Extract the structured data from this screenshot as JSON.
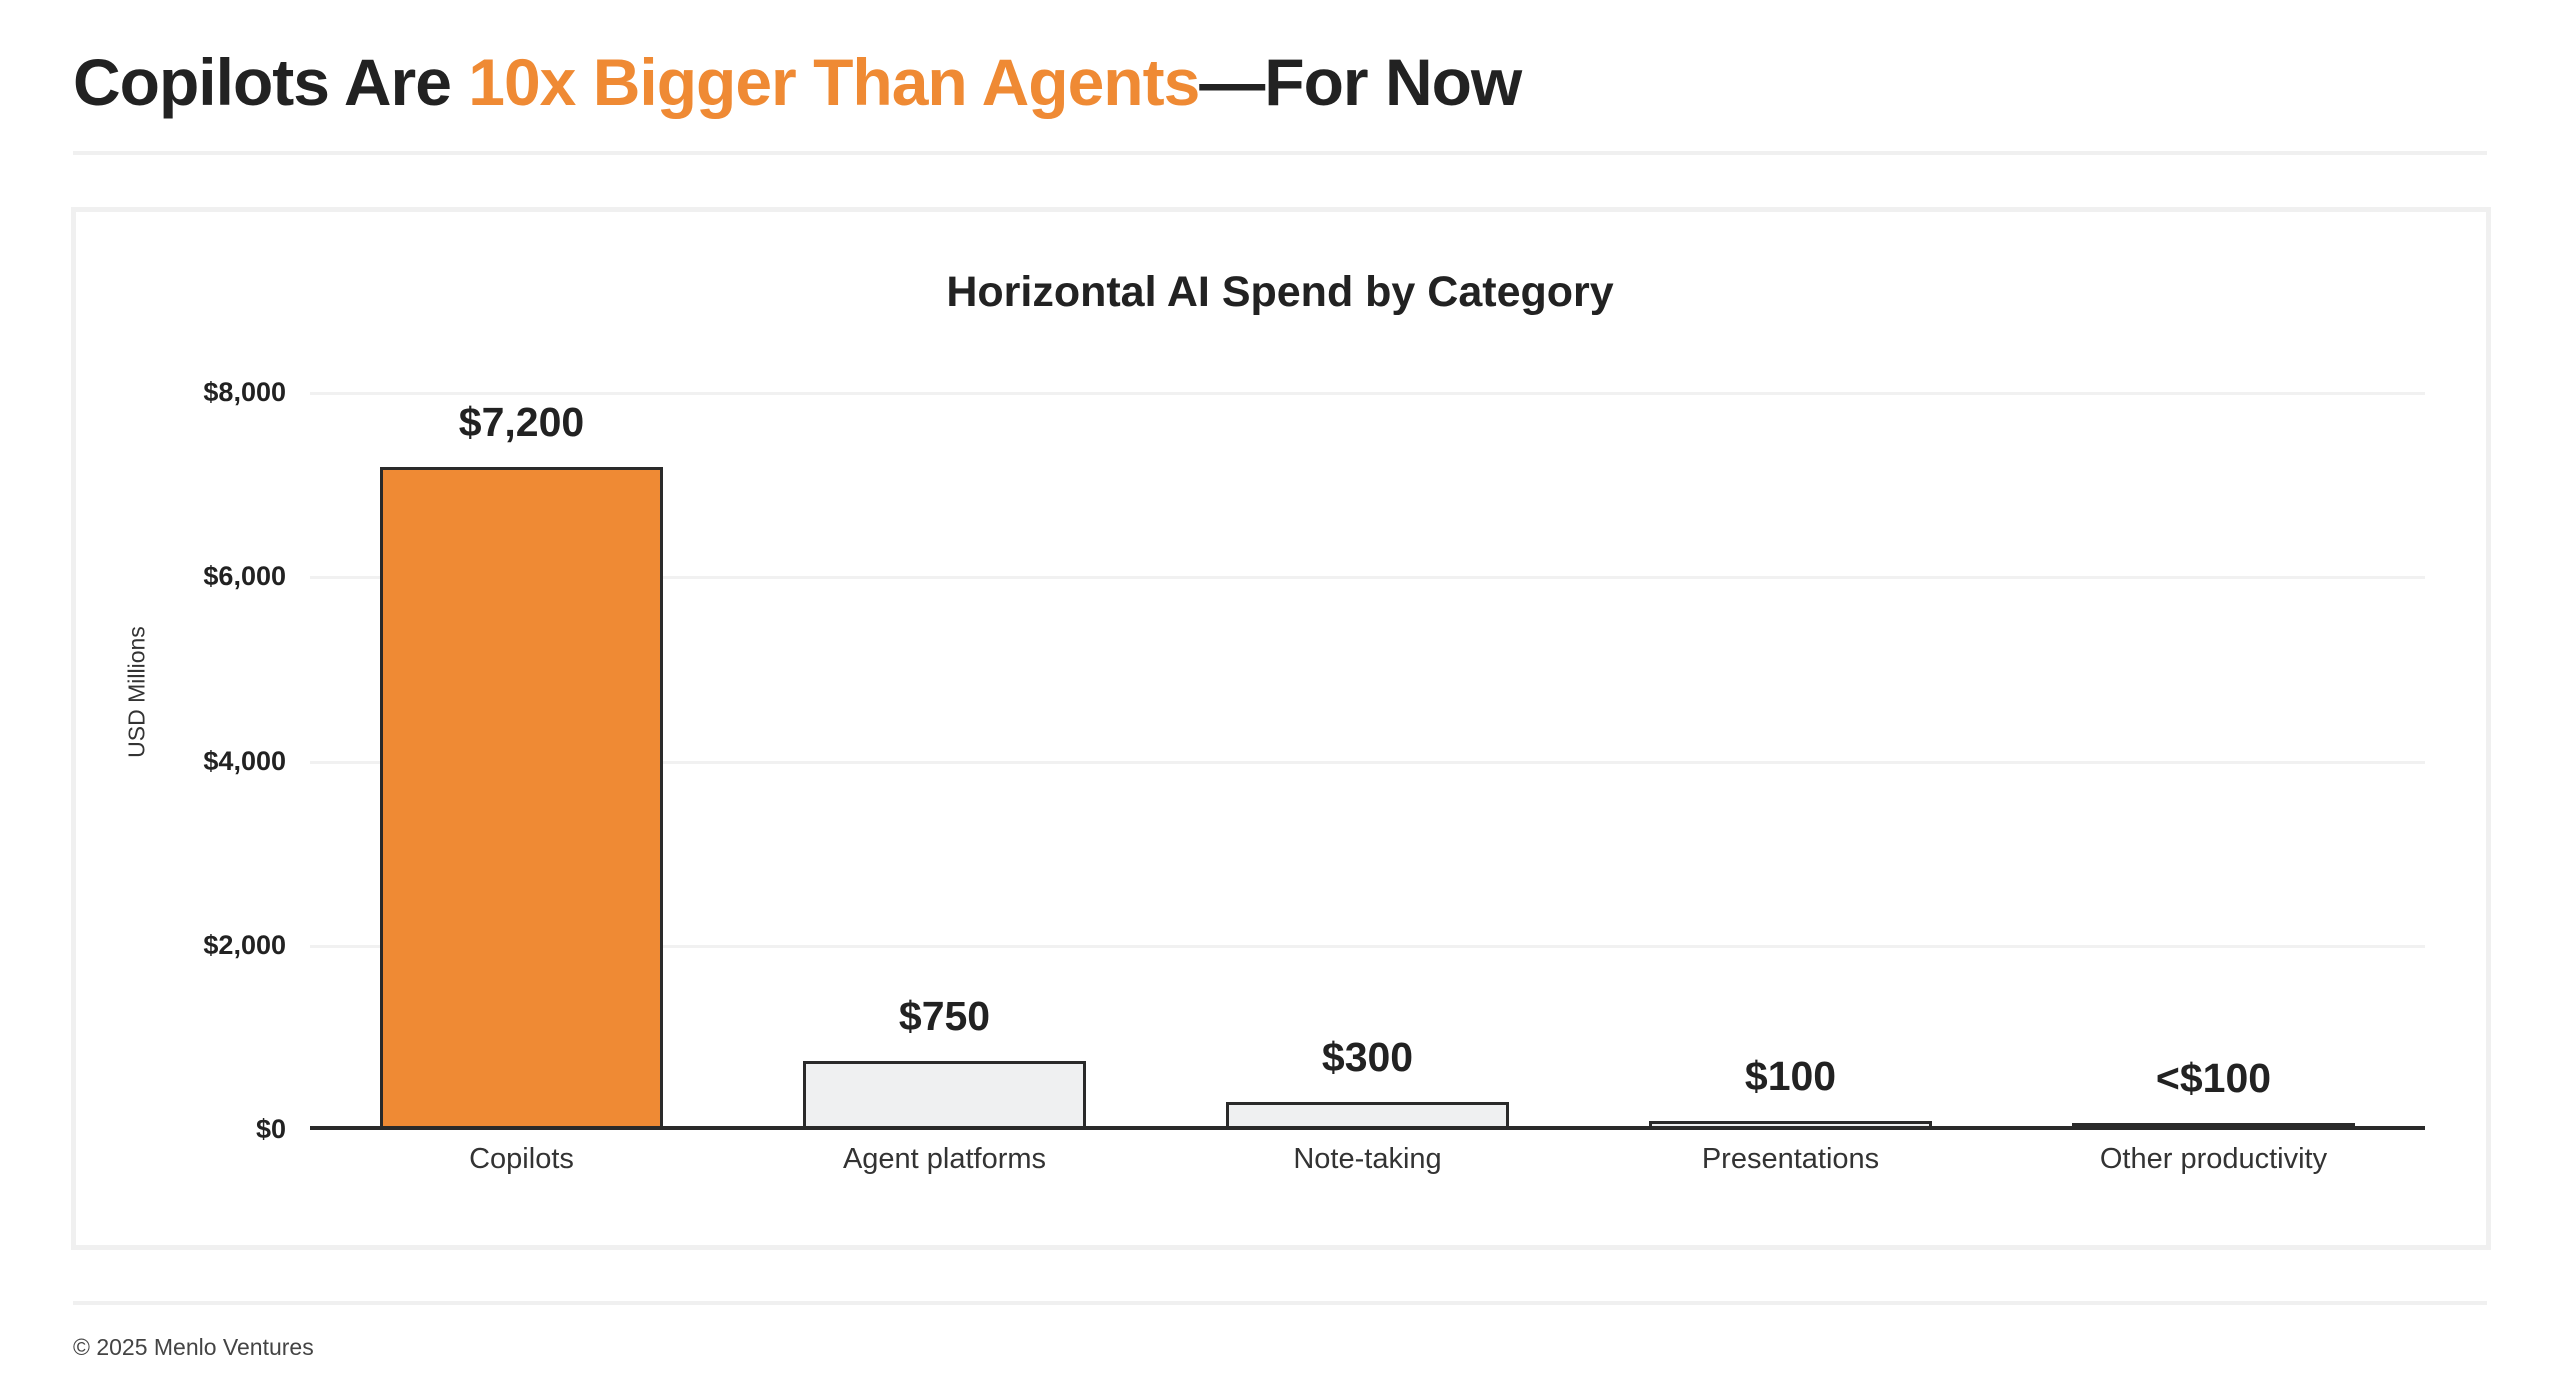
{
  "header": {
    "title_part1": "Copilots Are ",
    "title_highlight": "10x Bigger Than Agents",
    "title_part2": "—For Now"
  },
  "colors": {
    "accent": "#ef8a34",
    "bar_default": "#eff0f1",
    "bar_border": "#2a2a2a",
    "text": "#222222",
    "gridline": "#f1f1f1"
  },
  "chart_data": {
    "type": "bar",
    "title": "Horizontal AI Spend by Category",
    "xlabel": "",
    "ylabel": "USD Millions",
    "ylim": [
      0,
      8000
    ],
    "yticks": [
      "$0",
      "$2,000",
      "$4,000",
      "$6,000",
      "$8,000"
    ],
    "grid": true,
    "categories": [
      "Copilots",
      "Agent platforms",
      "Note-taking",
      "Presentations",
      "Other productivity"
    ],
    "values": [
      7200,
      750,
      300,
      100,
      50
    ],
    "data_labels": [
      "$7,200",
      "$750",
      "$300",
      "$100",
      "<$100"
    ],
    "highlighted_category": "Copilots"
  },
  "footer": {
    "copyright": "© 2025 Menlo Ventures"
  }
}
